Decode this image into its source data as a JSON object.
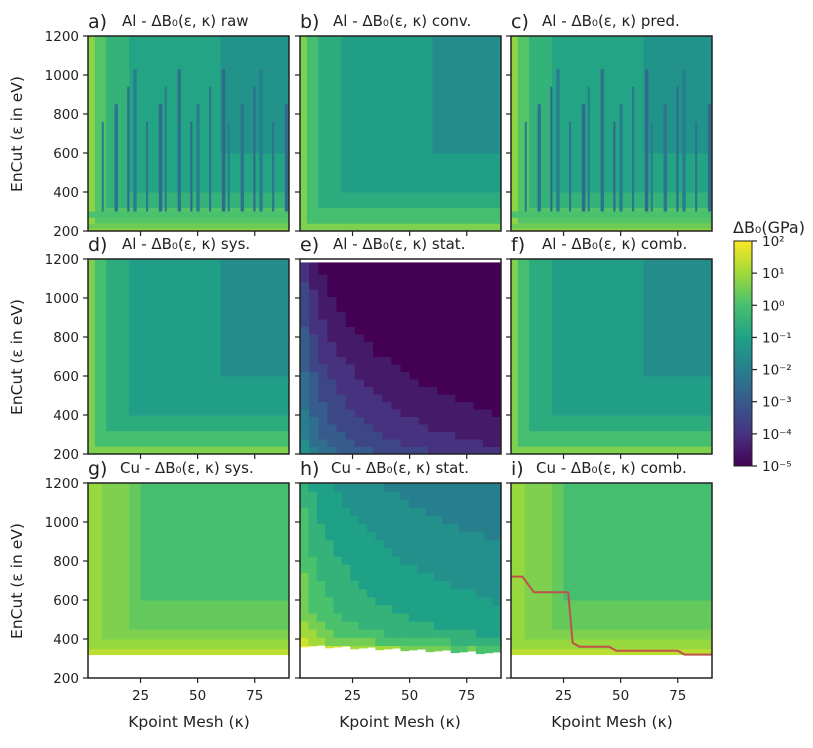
{
  "chart_data": {
    "type": "heatmap",
    "x_ticks": [
      25,
      50,
      75
    ],
    "y_ticks": [
      200,
      400,
      600,
      800,
      1000,
      1200
    ],
    "xlim": [
      2,
      90
    ],
    "ylim": [
      200,
      1200
    ],
    "xlabel": "Kpoint Mesh (κ)",
    "ylabel": "EnCut (ε in eV)",
    "colorbar": {
      "title": "ΔB₀(GPa)",
      "scale": "log",
      "range": [
        1e-05,
        100
      ],
      "ticks": [
        "10²",
        "10¹",
        "10⁰",
        "10⁻¹",
        "10⁻²",
        "10⁻³",
        "10⁻⁴",
        "10⁻⁵"
      ],
      "exponents": [
        2,
        1,
        0,
        -1,
        -2,
        -3,
        -4,
        -5
      ]
    },
    "panels": [
      {
        "letter": "a)",
        "title": "Al - ΔB₀(ε, κ) raw",
        "base_log10": -1.0,
        "kind": "raw"
      },
      {
        "letter": "b)",
        "title": "Al - ΔB₀(ε, κ) conv.",
        "base_log10": -1.2,
        "kind": "conv"
      },
      {
        "letter": "c)",
        "title": "Al - ΔB₀(ε, κ) pred.",
        "base_log10": -1.0,
        "kind": "raw"
      },
      {
        "letter": "d)",
        "title": "Al - ΔB₀(ε, κ) sys.",
        "base_log10": -1.2,
        "kind": "conv"
      },
      {
        "letter": "e)",
        "title": "Al - ΔB₀(ε, κ) stat.",
        "base_log10": -4.6,
        "kind": "stat"
      },
      {
        "letter": "f)",
        "title": "Al - ΔB₀(ε, κ) comb.",
        "base_log10": -1.2,
        "kind": "conv"
      },
      {
        "letter": "g)",
        "title": "Cu - ΔB₀(ε, κ) sys.",
        "base_log10": 0.3,
        "kind": "cu_sys"
      },
      {
        "letter": "h)",
        "title": "Cu - ΔB₀(ε, κ) stat.",
        "base_log10": -1.5,
        "kind": "cu_stat"
      },
      {
        "letter": "i)",
        "title": "Cu - ΔB₀(ε, κ) comb.",
        "base_log10": 0.3,
        "kind": "cu_comb"
      }
    ],
    "convergence_line": {
      "panel": "i)",
      "color": "#c0504d",
      "points": [
        [
          2,
          720
        ],
        [
          7,
          720
        ],
        [
          12,
          640
        ],
        [
          27,
          640
        ],
        [
          29,
          380
        ],
        [
          32,
          360
        ],
        [
          45,
          360
        ],
        [
          48,
          340
        ],
        [
          75,
          340
        ],
        [
          78,
          320
        ],
        [
          90,
          320
        ]
      ]
    }
  }
}
